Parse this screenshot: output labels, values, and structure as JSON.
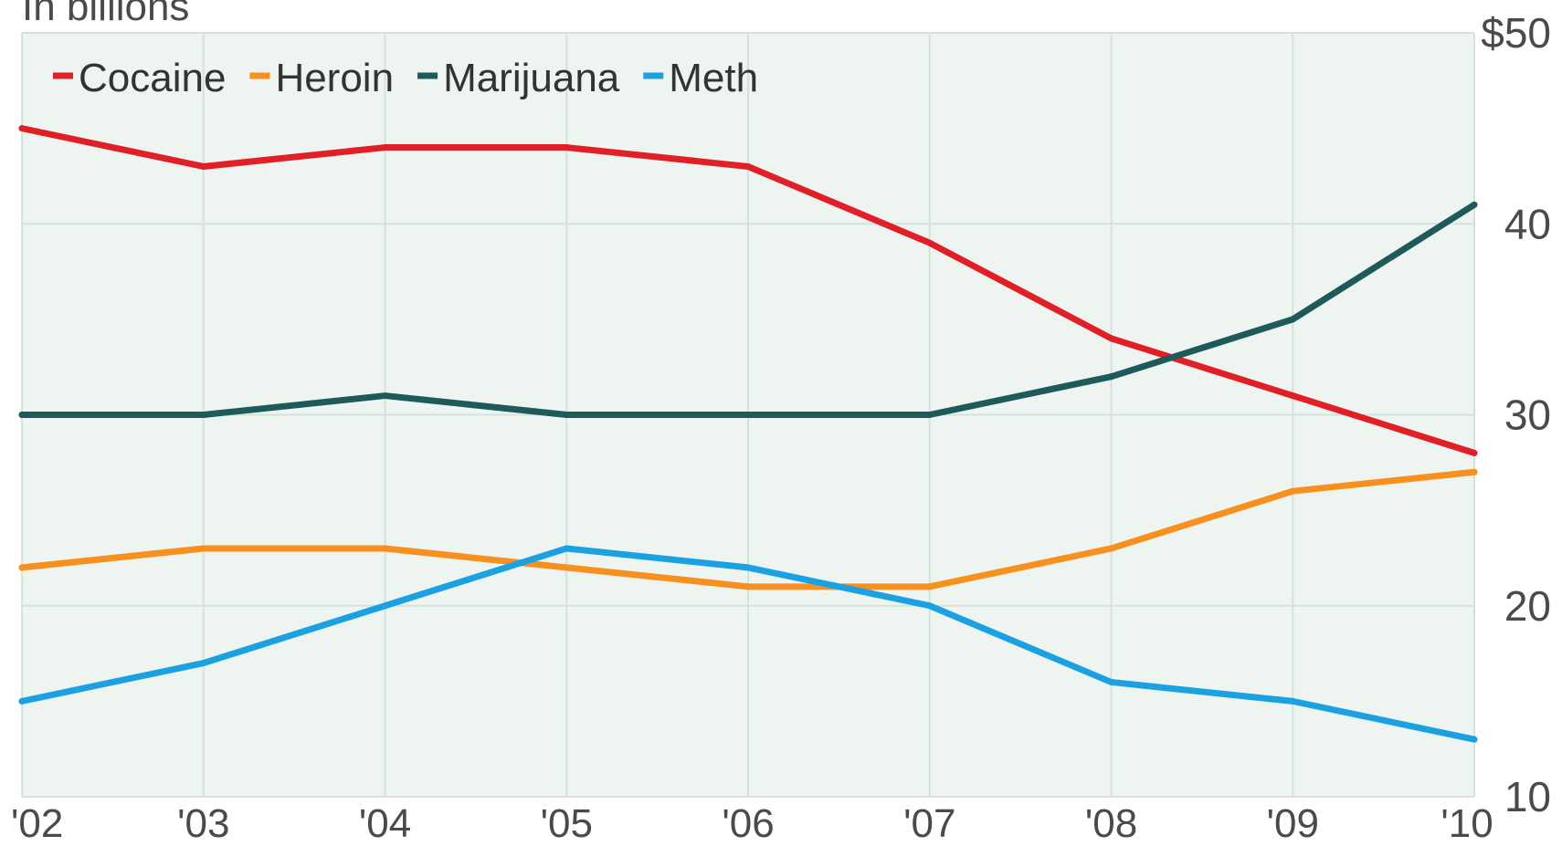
{
  "chart_data": {
    "type": "line",
    "subtitle": "In billions",
    "x": [
      "'02",
      "'03",
      "'04",
      "'05",
      "'06",
      "'07",
      "'08",
      "'09",
      "'10"
    ],
    "y_ticks": [
      "10",
      "20",
      "30",
      "40",
      "$50"
    ],
    "ylim": [
      10,
      50
    ],
    "y_axis_position": "right",
    "grid": true,
    "legend_position": "top-left",
    "background_color": "#eef4f0",
    "grid_color": "#d3e3dc",
    "series": [
      {
        "name": "Cocaine",
        "color": "#e01f26",
        "values": [
          45,
          43,
          44,
          44,
          43,
          39,
          34,
          31,
          28
        ]
      },
      {
        "name": "Heroin",
        "color": "#f7901e",
        "values": [
          22,
          23,
          23,
          22,
          21,
          21,
          23,
          26,
          27
        ]
      },
      {
        "name": "Marijuana",
        "color": "#1f5a5a",
        "values": [
          30,
          30,
          31,
          30,
          30,
          30,
          32,
          35,
          41
        ]
      },
      {
        "name": "Meth",
        "color": "#1ba1e2",
        "values": [
          15,
          17,
          20,
          23,
          22,
          20,
          16,
          15,
          13
        ]
      }
    ]
  }
}
